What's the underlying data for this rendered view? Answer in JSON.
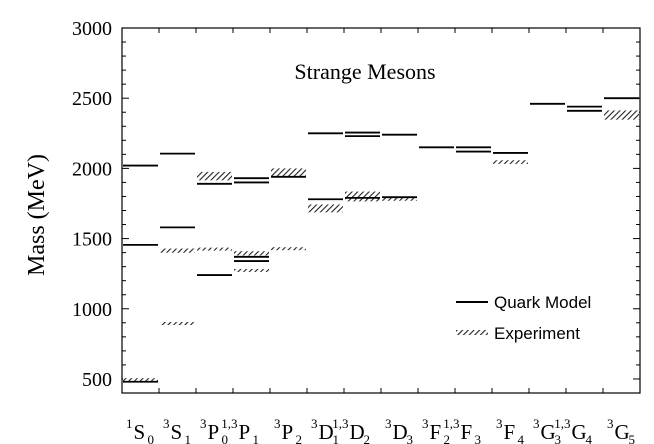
{
  "chart_data": {
    "type": "level-diagram",
    "title": "Strange Mesons",
    "ylabel": "Mass   (MeV)",
    "ylim": [
      400,
      3000
    ],
    "yticks": [
      500,
      1000,
      1500,
      2000,
      2500,
      3000
    ],
    "legend": {
      "position": "lower-right",
      "entries": [
        {
          "label": "Quark Model",
          "style": "line"
        },
        {
          "label": "Experiment",
          "style": "hatched"
        }
      ]
    },
    "columns": [
      {
        "id": "1S0",
        "sup": "1",
        "letter": "S",
        "sub": "0",
        "model": [
          480,
          1455,
          2020
        ],
        "experiment": [
          {
            "center": 495,
            "half": 5
          }
        ]
      },
      {
        "id": "3S1",
        "sup": "3",
        "letter": "S",
        "sub": "1",
        "model": [
          1580,
          2105
        ],
        "experiment": [
          {
            "center": 895,
            "half": 8
          },
          {
            "center": 1414,
            "half": 15
          }
        ]
      },
      {
        "id": "3P0",
        "sup": "3",
        "letter": "P",
        "sub": "0",
        "model": [
          1240,
          1890
        ],
        "experiment": [
          {
            "center": 1425,
            "half": 8
          },
          {
            "center": 1945,
            "half": 30
          }
        ]
      },
      {
        "id": "13P1",
        "sup": "1,3",
        "letter": "P",
        "sub": "1",
        "model": [
          1340,
          1370,
          1900,
          1930
        ],
        "experiment": [
          {
            "center": 1273,
            "half": 7
          },
          {
            "center": 1395,
            "half": 15
          }
        ]
      },
      {
        "id": "3P2",
        "sup": "3",
        "letter": "P",
        "sub": "2",
        "model": [
          1940
        ],
        "experiment": [
          {
            "center": 1428,
            "half": 10
          },
          {
            "center": 1970,
            "half": 30
          }
        ]
      },
      {
        "id": "3D1",
        "sup": "3",
        "letter": "D",
        "sub": "1",
        "model": [
          1780,
          2250
        ],
        "experiment": [
          {
            "center": 1715,
            "half": 28
          }
        ]
      },
      {
        "id": "13D2",
        "sup": "1,3",
        "letter": "D",
        "sub": "2",
        "model": [
          1790,
          2230,
          2255
        ],
        "experiment": [
          {
            "center": 1800,
            "half": 35
          }
        ]
      },
      {
        "id": "3D3",
        "sup": "3",
        "letter": "D",
        "sub": "3",
        "model": [
          1795,
          2240
        ],
        "experiment": [
          {
            "center": 1780,
            "half": 10
          }
        ]
      },
      {
        "id": "3F2",
        "sup": "3",
        "letter": "F",
        "sub": "2",
        "model": [
          2150
        ],
        "experiment": []
      },
      {
        "id": "13F3",
        "sup": "1,3",
        "letter": "F",
        "sub": "3",
        "model": [
          2120,
          2150
        ],
        "experiment": []
      },
      {
        "id": "3F4",
        "sup": "3",
        "letter": "F",
        "sub": "4",
        "model": [
          2110
        ],
        "experiment": [
          {
            "center": 2045,
            "half": 13
          }
        ]
      },
      {
        "id": "3G3",
        "sup": "3",
        "letter": "G",
        "sub": "3",
        "model": [
          2460
        ],
        "experiment": []
      },
      {
        "id": "13G4",
        "sup": "1,3",
        "letter": "G",
        "sub": "4",
        "model": [
          2410,
          2440
        ],
        "experiment": []
      },
      {
        "id": "3G5",
        "sup": "3",
        "letter": "G",
        "sub": "5",
        "model": [
          2500
        ],
        "experiment": [
          {
            "center": 2380,
            "half": 33
          }
        ]
      }
    ]
  }
}
